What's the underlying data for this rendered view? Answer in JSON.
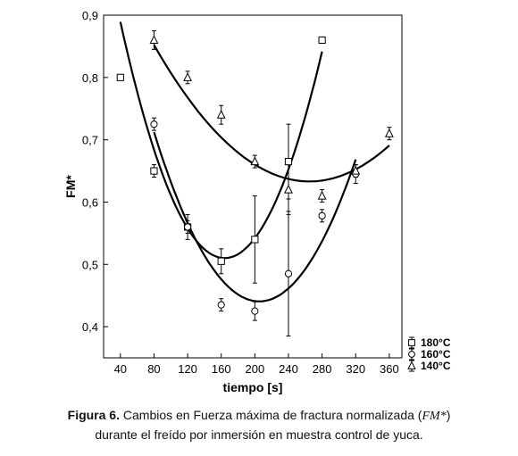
{
  "chart_data": {
    "type": "scatter",
    "title": "",
    "xlabel": "tiempo [s]",
    "ylabel": "FM*",
    "xlim": [
      20,
      375
    ],
    "ylim": [
      0.35,
      0.9
    ],
    "xticks": [
      40,
      80,
      120,
      160,
      200,
      240,
      280,
      320,
      360
    ],
    "yticks": [
      0.4,
      0.5,
      0.6,
      0.7,
      0.8,
      0.9
    ],
    "xtick_labels": [
      "40",
      "80",
      "120",
      "160",
      "200",
      "240",
      "280",
      "320",
      "360"
    ],
    "ytick_labels": [
      "0,4",
      "0,5",
      "0,6",
      "0,7",
      "0,8",
      "0,9"
    ],
    "grid": false,
    "legend_position": "outside-bottom-right",
    "series": [
      {
        "name": "180°C",
        "marker": "square",
        "points": [
          {
            "x": 40,
            "y": 0.8,
            "err": 0.003
          },
          {
            "x": 80,
            "y": 0.65,
            "err": 0.01
          },
          {
            "x": 120,
            "y": 0.56,
            "err": 0.01
          },
          {
            "x": 160,
            "y": 0.505,
            "err": 0.02
          },
          {
            "x": 200,
            "y": 0.54,
            "err": 0.07
          },
          {
            "x": 240,
            "y": 0.665,
            "err": 0.06
          },
          {
            "x": 280,
            "y": 0.86,
            "err": 0.005
          }
        ],
        "fit": {
          "a": 2.465e-05,
          "b": -0.008086,
          "c": 1.1732,
          "x_range": [
            40,
            280
          ]
        }
      },
      {
        "name": "160°C",
        "marker": "circle",
        "points": [
          {
            "x": 80,
            "y": 0.725,
            "err": 0.01
          },
          {
            "x": 120,
            "y": 0.56,
            "err": 0.02
          },
          {
            "x": 160,
            "y": 0.435,
            "err": 0.01
          },
          {
            "x": 200,
            "y": 0.425,
            "err": 0.015
          },
          {
            "x": 240,
            "y": 0.485,
            "err": 0.1
          },
          {
            "x": 280,
            "y": 0.578,
            "err": 0.01
          },
          {
            "x": 320,
            "y": 0.645,
            "err": 0.015
          }
        ],
        "fit": {
          "a": 1.73e-05,
          "b": -0.007103,
          "c": 1.1697,
          "x_range": [
            80,
            320
          ]
        }
      },
      {
        "name": "140°C",
        "marker": "triangle",
        "points": [
          {
            "x": 80,
            "y": 0.86,
            "err": 0.015
          },
          {
            "x": 120,
            "y": 0.8,
            "err": 0.01
          },
          {
            "x": 160,
            "y": 0.74,
            "err": 0.015
          },
          {
            "x": 200,
            "y": 0.665,
            "err": 0.01
          },
          {
            "x": 240,
            "y": 0.62,
            "err": 0.04
          },
          {
            "x": 280,
            "y": 0.61,
            "err": 0.01
          },
          {
            "x": 320,
            "y": 0.65,
            "err": 0.01
          },
          {
            "x": 360,
            "y": 0.71,
            "err": 0.01
          }
        ],
        "fit": {
          "a": 6.4e-06,
          "b": -0.003392,
          "c": 1.0826,
          "x_range": [
            80,
            360
          ]
        }
      }
    ]
  },
  "caption": {
    "label": "Figura 6.",
    "text_before": " Cambios en Fuerza máxima de fractura normalizada (",
    "symbol": "FM*",
    "text_after": ")",
    "line2": "durante el freído por inmersión en muestra control de yuca."
  }
}
